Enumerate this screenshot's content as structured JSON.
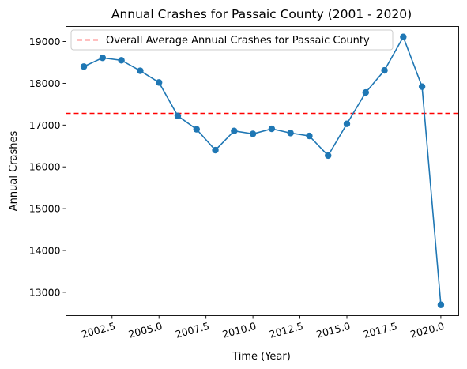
{
  "chart_data": {
    "type": "line",
    "title": "Annual Crashes for Passaic County (2001 - 2020)",
    "xlabel": "Time (Year)",
    "ylabel": "Annual Crashes",
    "xlim": [
      2000.05,
      2020.95
    ],
    "ylim": [
      12440,
      19360
    ],
    "xticks": [
      2002.5,
      2005.0,
      2007.5,
      2010.0,
      2012.5,
      2015.0,
      2017.5,
      2020.0
    ],
    "xtick_labels": [
      "2002.5",
      "2005.0",
      "2007.5",
      "2010.0",
      "2012.5",
      "2015.0",
      "2017.5",
      "2020.0"
    ],
    "yticks": [
      13000,
      14000,
      15000,
      16000,
      17000,
      18000,
      19000
    ],
    "ytick_labels": [
      "13000",
      "14000",
      "15000",
      "16000",
      "17000",
      "18000",
      "19000"
    ],
    "grid": false,
    "legend_position": "top-left",
    "series": [
      {
        "color": "#1f77b4",
        "marker": "circle",
        "x": [
          2001,
          2002,
          2003,
          2004,
          2005,
          2006,
          2007,
          2008,
          2009,
          2010,
          2011,
          2012,
          2013,
          2014,
          2015,
          2016,
          2017,
          2018,
          2019,
          2020
        ],
        "y": [
          18400,
          18610,
          18550,
          18300,
          18020,
          17220,
          16900,
          16400,
          16860,
          16790,
          16910,
          16810,
          16740,
          16270,
          17030,
          17780,
          18310,
          19110,
          17920,
          12700
        ]
      }
    ],
    "reference_lines": [
      {
        "name": "Overall Average Annual Crashes for Passaic County",
        "orientation": "horizontal",
        "y": 17280,
        "color": "#ff0000",
        "style": "dashed"
      }
    ]
  }
}
